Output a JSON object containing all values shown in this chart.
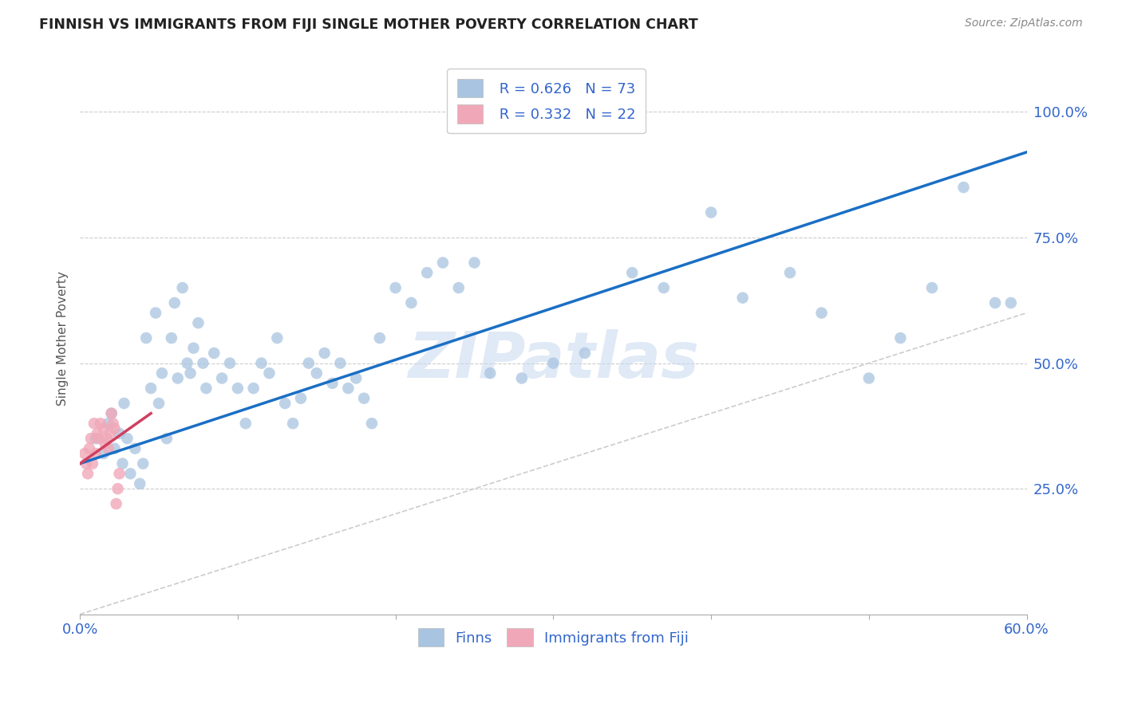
{
  "title": "FINNISH VS IMMIGRANTS FROM FIJI SINGLE MOTHER POVERTY CORRELATION CHART",
  "source": "Source: ZipAtlas.com",
  "ylabel": "Single Mother Poverty",
  "xlim": [
    0.0,
    0.6
  ],
  "ylim": [
    0.0,
    1.1
  ],
  "xticks": [
    0.0,
    0.1,
    0.2,
    0.3,
    0.4,
    0.5,
    0.6
  ],
  "xtick_labels": [
    "0.0%",
    "",
    "",
    "",
    "",
    "",
    "60.0%"
  ],
  "ytick_positions": [
    0.25,
    0.5,
    0.75,
    1.0
  ],
  "ytick_labels": [
    "25.0%",
    "50.0%",
    "75.0%",
    "100.0%"
  ],
  "legend_r1": "R = 0.626",
  "legend_n1": "N = 73",
  "legend_r2": "R = 0.332",
  "legend_n2": "N = 22",
  "color_finns": "#a8c4e0",
  "color_fiji": "#f0a8b8",
  "trendline_color_finns": "#1a6fc4",
  "trendline_color_fiji": "#d04060",
  "diagonal_color": "#cccccc",
  "watermark": "ZIPatlas",
  "background_color": "#ffffff",
  "finns_x": [
    0.01,
    0.015,
    0.018,
    0.02,
    0.022,
    0.025,
    0.027,
    0.028,
    0.03,
    0.032,
    0.035,
    0.038,
    0.04,
    0.042,
    0.045,
    0.048,
    0.05,
    0.052,
    0.055,
    0.058,
    0.06,
    0.062,
    0.065,
    0.068,
    0.07,
    0.072,
    0.075,
    0.078,
    0.08,
    0.085,
    0.09,
    0.095,
    0.1,
    0.105,
    0.11,
    0.115,
    0.12,
    0.125,
    0.13,
    0.135,
    0.14,
    0.145,
    0.15,
    0.155,
    0.16,
    0.165,
    0.17,
    0.175,
    0.18,
    0.185,
    0.19,
    0.2,
    0.21,
    0.22,
    0.23,
    0.24,
    0.25,
    0.26,
    0.28,
    0.3,
    0.32,
    0.35,
    0.37,
    0.4,
    0.42,
    0.45,
    0.47,
    0.5,
    0.52,
    0.54,
    0.56,
    0.58,
    0.59
  ],
  "finns_y": [
    0.35,
    0.32,
    0.38,
    0.4,
    0.33,
    0.36,
    0.3,
    0.42,
    0.35,
    0.28,
    0.33,
    0.26,
    0.3,
    0.55,
    0.45,
    0.6,
    0.42,
    0.48,
    0.35,
    0.55,
    0.62,
    0.47,
    0.65,
    0.5,
    0.48,
    0.53,
    0.58,
    0.5,
    0.45,
    0.52,
    0.47,
    0.5,
    0.45,
    0.38,
    0.45,
    0.5,
    0.48,
    0.55,
    0.42,
    0.38,
    0.43,
    0.5,
    0.48,
    0.52,
    0.46,
    0.5,
    0.45,
    0.47,
    0.43,
    0.38,
    0.55,
    0.65,
    0.62,
    0.68,
    0.7,
    0.65,
    0.7,
    0.48,
    0.47,
    0.5,
    0.52,
    0.68,
    0.65,
    0.8,
    0.63,
    0.68,
    0.6,
    0.47,
    0.55,
    0.65,
    0.85,
    0.62,
    0.62
  ],
  "fiji_x": [
    0.003,
    0.004,
    0.005,
    0.006,
    0.007,
    0.008,
    0.009,
    0.01,
    0.011,
    0.012,
    0.013,
    0.015,
    0.016,
    0.017,
    0.018,
    0.019,
    0.02,
    0.021,
    0.022,
    0.023,
    0.024,
    0.025
  ],
  "fiji_y": [
    0.32,
    0.3,
    0.28,
    0.33,
    0.35,
    0.3,
    0.38,
    0.32,
    0.36,
    0.35,
    0.38,
    0.37,
    0.34,
    0.35,
    0.33,
    0.36,
    0.4,
    0.38,
    0.37,
    0.22,
    0.25,
    0.28
  ],
  "finns_trendline_x": [
    0.0,
    0.6
  ],
  "finns_trendline_y": [
    0.3,
    0.92
  ],
  "fiji_trendline_x": [
    0.0,
    0.045
  ],
  "fiji_trendline_y": [
    0.3,
    0.4
  ]
}
